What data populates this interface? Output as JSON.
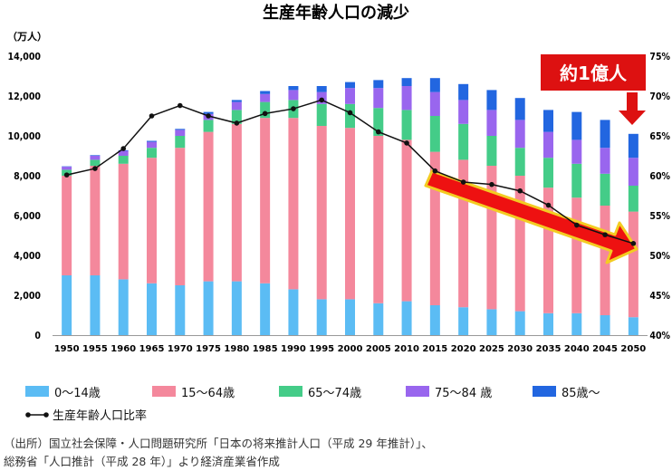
{
  "title": "生産年齢人口の減少",
  "y_left_unit": "（万人）",
  "callout": "約1億人",
  "legend": {
    "s0": "0〜14歳",
    "s1": "15〜64歳",
    "s2": "65〜74歳",
    "s3": "75〜84 歳",
    "s4": "85歳〜",
    "line": "生産年齢人口比率"
  },
  "source": {
    "line1": "（出所）国立社会保障・人口問題研究所「日本の将来推計人口（平成 29 年推計）」、",
    "line2": "総務省「人口推計（平成 28 年）」より経済産業省作成"
  },
  "colors": {
    "s0": "#5bbcf4",
    "s1": "#f4889c",
    "s2": "#44cc88",
    "s3": "#9966ee",
    "s4": "#2266e0",
    "line": "#111111",
    "callout_bg": "#dd1111",
    "arrow": "#ee1111"
  },
  "chart_data": {
    "type": "bar",
    "stacked": true,
    "categories": [
      "1950",
      "1955",
      "1960",
      "1965",
      "1970",
      "1975",
      "1980",
      "1985",
      "1990",
      "1995",
      "2000",
      "2005",
      "2010",
      "2015",
      "2020",
      "2025",
      "2030",
      "2035",
      "2040",
      "2045",
      "2050"
    ],
    "series": [
      {
        "name": "0〜14歳",
        "axis": "left",
        "values": [
          3000,
          3000,
          2800,
          2600,
          2500,
          2700,
          2700,
          2600,
          2300,
          1800,
          1800,
          1600,
          1700,
          1500,
          1400,
          1300,
          1200,
          1100,
          1100,
          1000,
          900
        ]
      },
      {
        "name": "15〜64歳",
        "axis": "left",
        "values": [
          5000,
          5500,
          5800,
          6300,
          6900,
          7500,
          7900,
          8300,
          8600,
          8700,
          8600,
          8400,
          8100,
          7700,
          7400,
          7200,
          6800,
          6300,
          5800,
          5500,
          5300
        ]
      },
      {
        "name": "65〜74歳",
        "axis": "left",
        "values": [
          300,
          300,
          400,
          500,
          600,
          600,
          700,
          800,
          900,
          1100,
          1200,
          1400,
          1500,
          1800,
          1800,
          1500,
          1400,
          1500,
          1700,
          1600,
          1300
        ]
      },
      {
        "name": "75〜84 歳",
        "axis": "left",
        "values": [
          150,
          200,
          250,
          300,
          300,
          300,
          400,
          400,
          500,
          600,
          800,
          1000,
          1200,
          1200,
          1200,
          1300,
          1400,
          1300,
          1200,
          1300,
          1400
        ]
      },
      {
        "name": "85歳〜",
        "axis": "left",
        "values": [
          20,
          30,
          30,
          50,
          50,
          100,
          100,
          150,
          200,
          300,
          300,
          400,
          400,
          700,
          800,
          1000,
          1100,
          1100,
          1400,
          1400,
          1200
        ]
      },
      {
        "name": "生産年齢人口比率",
        "type": "line",
        "axis": "right",
        "values": [
          60.1,
          60.9,
          63.4,
          67.5,
          68.8,
          67.5,
          66.6,
          67.8,
          68.4,
          69.5,
          67.9,
          65.5,
          64.1,
          60.6,
          59.2,
          58.9,
          58.1,
          56.3,
          53.8,
          52.6,
          51.5
        ]
      }
    ],
    "y_left": {
      "min": 0,
      "max": 14000,
      "ticks": [
        "0",
        "2,000",
        "4,000",
        "6,000",
        "8,000",
        "10,000",
        "12,000",
        "14,000"
      ]
    },
    "y_right": {
      "min": 40,
      "max": 75,
      "ticks": [
        "40%",
        "45%",
        "50%",
        "55%",
        "60%",
        "65%",
        "70%",
        "75%"
      ]
    },
    "legend_position": "bottom",
    "grid": false
  }
}
